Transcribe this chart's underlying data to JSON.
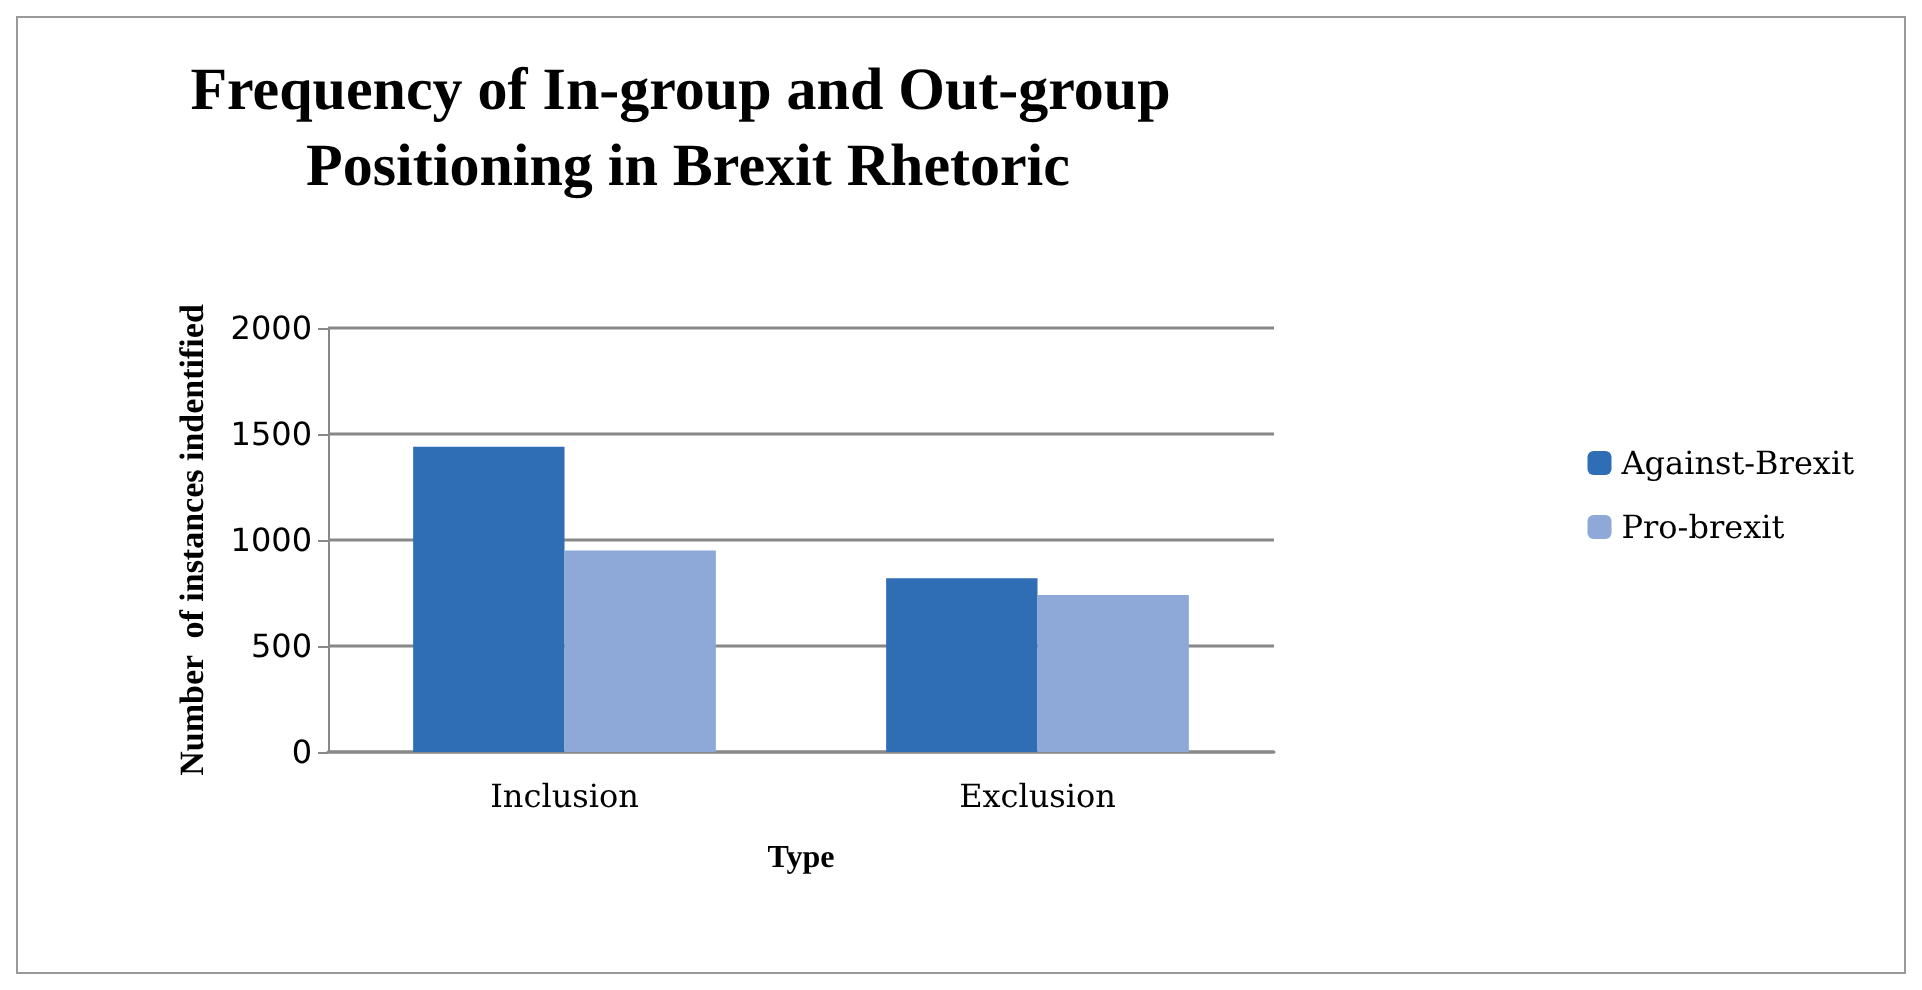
{
  "chart_data": {
    "type": "bar",
    "title": "Frequency of In-group and Out-group Positioning in Brexit Rhetoric",
    "xlabel": "Type",
    "ylabel": "Number  of instances indentified",
    "categories": [
      "Inclusion",
      "Exclusion"
    ],
    "series": [
      {
        "name": "Against-Brexit",
        "color": "#2f6db5",
        "values": [
          1440,
          820
        ]
      },
      {
        "name": "Pro-brexit",
        "color": "#8ea9d8",
        "values": [
          950,
          740
        ]
      }
    ],
    "ylim": [
      0,
      2000
    ],
    "yticks": [
      0,
      500,
      1000,
      1500,
      2000
    ],
    "grid": "y",
    "legend": "right"
  }
}
